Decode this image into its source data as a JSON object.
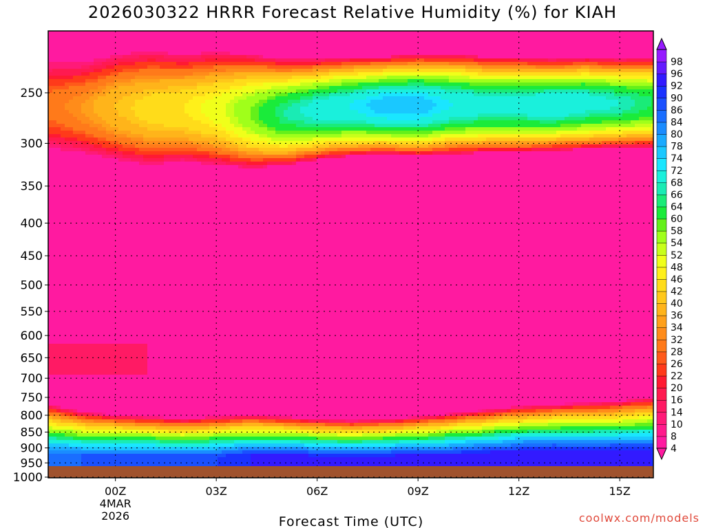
{
  "title": "2026030322 HRRR Forecast Relative Humidity (%) for KIAH",
  "credit": "coolwx.com/models",
  "chart_data": {
    "type": "heatmap",
    "title": "2026030322 HRRR Forecast Relative Humidity (%) for KIAH",
    "xlabel": "Forecast Time (UTC)",
    "ylabel": "",
    "x_ticks": [
      {
        "label": "00Z",
        "hour": 0
      },
      {
        "label": "03Z",
        "hour": 3
      },
      {
        "label": "06Z",
        "hour": 6
      },
      {
        "label": "09Z",
        "hour": 9
      },
      {
        "label": "12Z",
        "hour": 12
      },
      {
        "label": "15Z",
        "hour": 15
      }
    ],
    "date_label": [
      "4MAR",
      "2026"
    ],
    "xlim": [
      -2,
      16
    ],
    "y_ticks": [
      250,
      300,
      350,
      400,
      450,
      500,
      550,
      600,
      650,
      700,
      750,
      800,
      850,
      900,
      950,
      1000
    ],
    "ylim_hpa": [
      200,
      1010
    ],
    "y_scale": "log-pressure",
    "grid": true,
    "colorbar_levels": [
      4,
      8,
      10,
      14,
      16,
      20,
      22,
      26,
      28,
      32,
      34,
      36,
      40,
      42,
      46,
      48,
      52,
      54,
      58,
      60,
      64,
      66,
      68,
      72,
      74,
      78,
      80,
      84,
      86,
      90,
      92,
      96,
      98
    ],
    "colorbar_colors": [
      "#ff1aa0",
      "#ff1a8c",
      "#ff1a78",
      "#ff1a64",
      "#ff1a50",
      "#ff1a32",
      "#ff3a1a",
      "#ff5a1a",
      "#ff7a1a",
      "#ff8c1a",
      "#ffa01a",
      "#ffb41a",
      "#ffc81a",
      "#ffdc1a",
      "#fff01a",
      "#f0ff1a",
      "#c8ff1a",
      "#a0ff1a",
      "#64f01a",
      "#1aeb3a",
      "#1aeb78",
      "#1aebb4",
      "#1af0dc",
      "#1ae6ff",
      "#1ac8ff",
      "#1aaaff",
      "#1a8cff",
      "#1a6eff",
      "#1a50ff",
      "#1a32ff",
      "#321aff",
      "#641aff",
      "#961aff"
    ],
    "series": [
      {
        "name": "upper moist layer",
        "hpa_top": [
          225,
          225,
          218,
          215,
          218,
          216,
          218,
          222,
          222,
          220,
          220,
          218,
          218,
          220,
          220,
          222,
          220,
          222,
          220
        ],
        "hpa_bot": [
          305,
          310,
          318,
          324,
          320,
          324,
          328,
          325,
          318,
          314,
          312,
          314,
          312,
          310,
          310,
          308,
          306,
          305,
          305
        ],
        "peak_rh": [
          30,
          34,
          40,
          44,
          46,
          50,
          58,
          66,
          70,
          72,
          76,
          76,
          72,
          70,
          70,
          72,
          70,
          68,
          64
        ]
      },
      {
        "name": "lower moist layer",
        "hpa_top": [
          770,
          790,
          800,
          805,
          810,
          805,
          800,
          805,
          812,
          815,
          812,
          805,
          795,
          785,
          775,
          770,
          765,
          760,
          750
        ],
        "hpa_bot": [
          1000,
          1000,
          1000,
          1000,
          1000,
          1000,
          1000,
          1000,
          1000,
          1000,
          1000,
          1000,
          1000,
          1000,
          1000,
          1000,
          1000,
          1000,
          1000
        ],
        "peak_rh": [
          84,
          86,
          88,
          90,
          90,
          90,
          92,
          94,
          94,
          94,
          94,
          94,
          94,
          94,
          96,
          96,
          94,
          94,
          92
        ]
      }
    ],
    "background_rh_midlevels": 8,
    "ground_level_hpa": 1000
  }
}
